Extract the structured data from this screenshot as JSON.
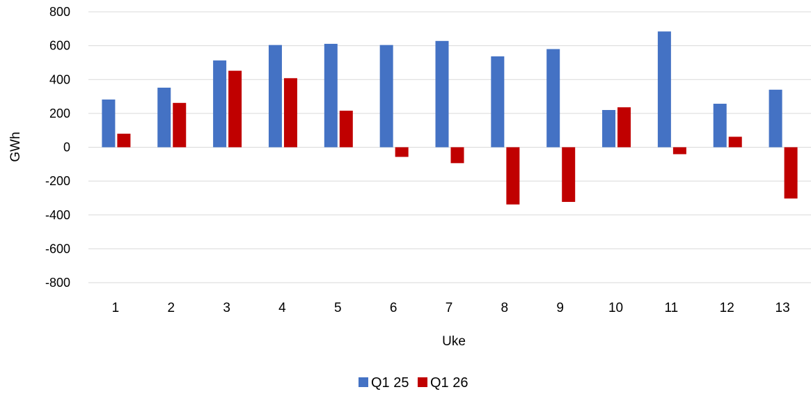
{
  "chart_data": {
    "type": "bar",
    "title": "",
    "xlabel": "Uke",
    "ylabel": "GWh",
    "ylim": [
      -800,
      800
    ],
    "yticks": [
      800,
      600,
      400,
      200,
      0,
      -200,
      -400,
      -600,
      -800
    ],
    "grid": true,
    "legend_position": "bottom",
    "categories": [
      "1",
      "2",
      "3",
      "4",
      "5",
      "6",
      "7",
      "8",
      "9",
      "10",
      "11",
      "12",
      "13"
    ],
    "series": [
      {
        "name": "Q1 25",
        "color": "#4472C4",
        "values": [
          282,
          352,
          513,
          604,
          611,
          604,
          628,
          537,
          580,
          220,
          684,
          257,
          340
        ]
      },
      {
        "name": "Q1 26",
        "color": "#C00000",
        "values": [
          80,
          262,
          452,
          408,
          216,
          -57,
          -94,
          -338,
          -323,
          236,
          -41,
          62,
          -303
        ]
      }
    ]
  }
}
